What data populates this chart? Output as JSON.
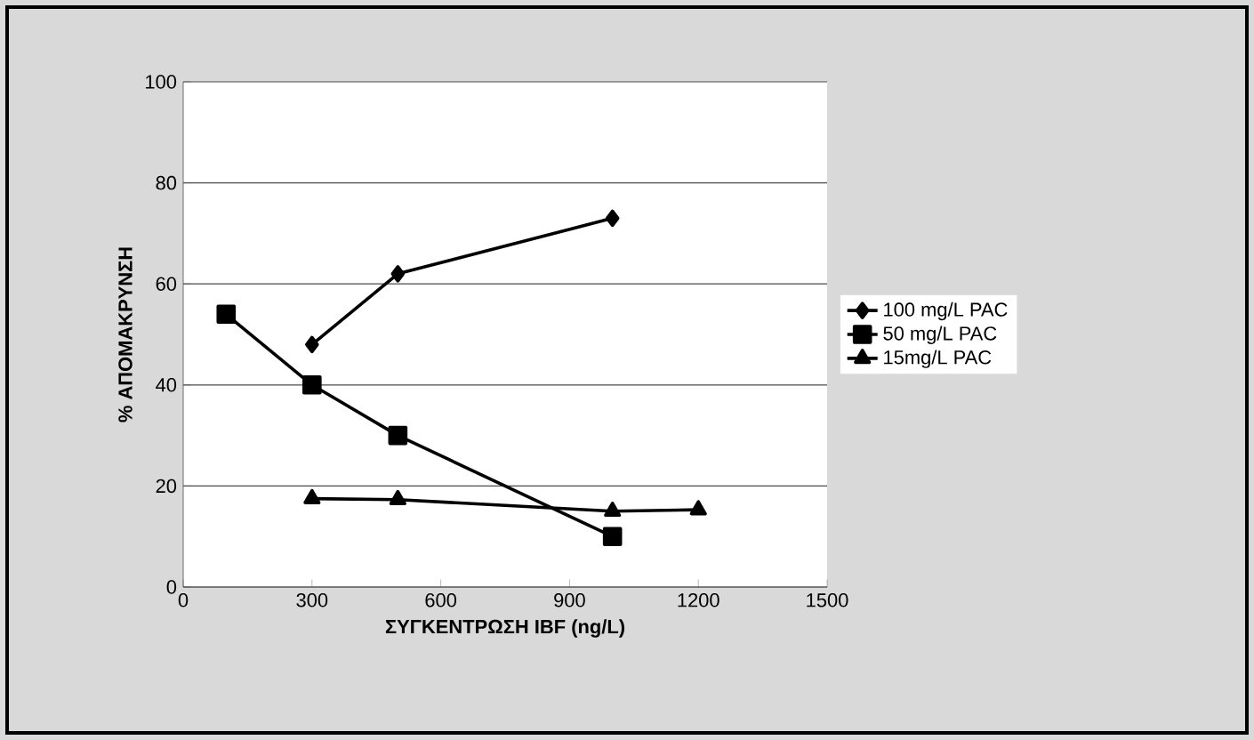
{
  "chart_data": {
    "type": "line",
    "xlabel": "ΣΥΓΚΕΝΤΡΩΣΗ IBF (ng/L)",
    "ylabel": "% ΑΠΟΜΑΚΡΥΝΣΗ",
    "xlim": [
      0,
      1500
    ],
    "xticks": [
      0,
      300,
      600,
      900,
      1200,
      1500
    ],
    "ylim": [
      0,
      100
    ],
    "yticks": [
      0,
      20,
      40,
      60,
      80,
      100
    ],
    "grid": "y",
    "legend": "right",
    "series": [
      {
        "name": "100 mg/L PAC",
        "color": "#000000",
        "marker": "diamond",
        "x": [
          300,
          500,
          1000
        ],
        "values": [
          48,
          62,
          73
        ]
      },
      {
        "name": "50 mg/L PAC",
        "color": "#000000",
        "marker": "square",
        "x": [
          100,
          300,
          500,
          1000
        ],
        "values": [
          54,
          40,
          30,
          10
        ]
      },
      {
        "name": "15mg/L PAC",
        "color": "#000000",
        "marker": "triangle",
        "x": [
          300,
          500,
          1000,
          1200
        ],
        "values": [
          17.5,
          17.3,
          15,
          15.3
        ]
      }
    ]
  }
}
